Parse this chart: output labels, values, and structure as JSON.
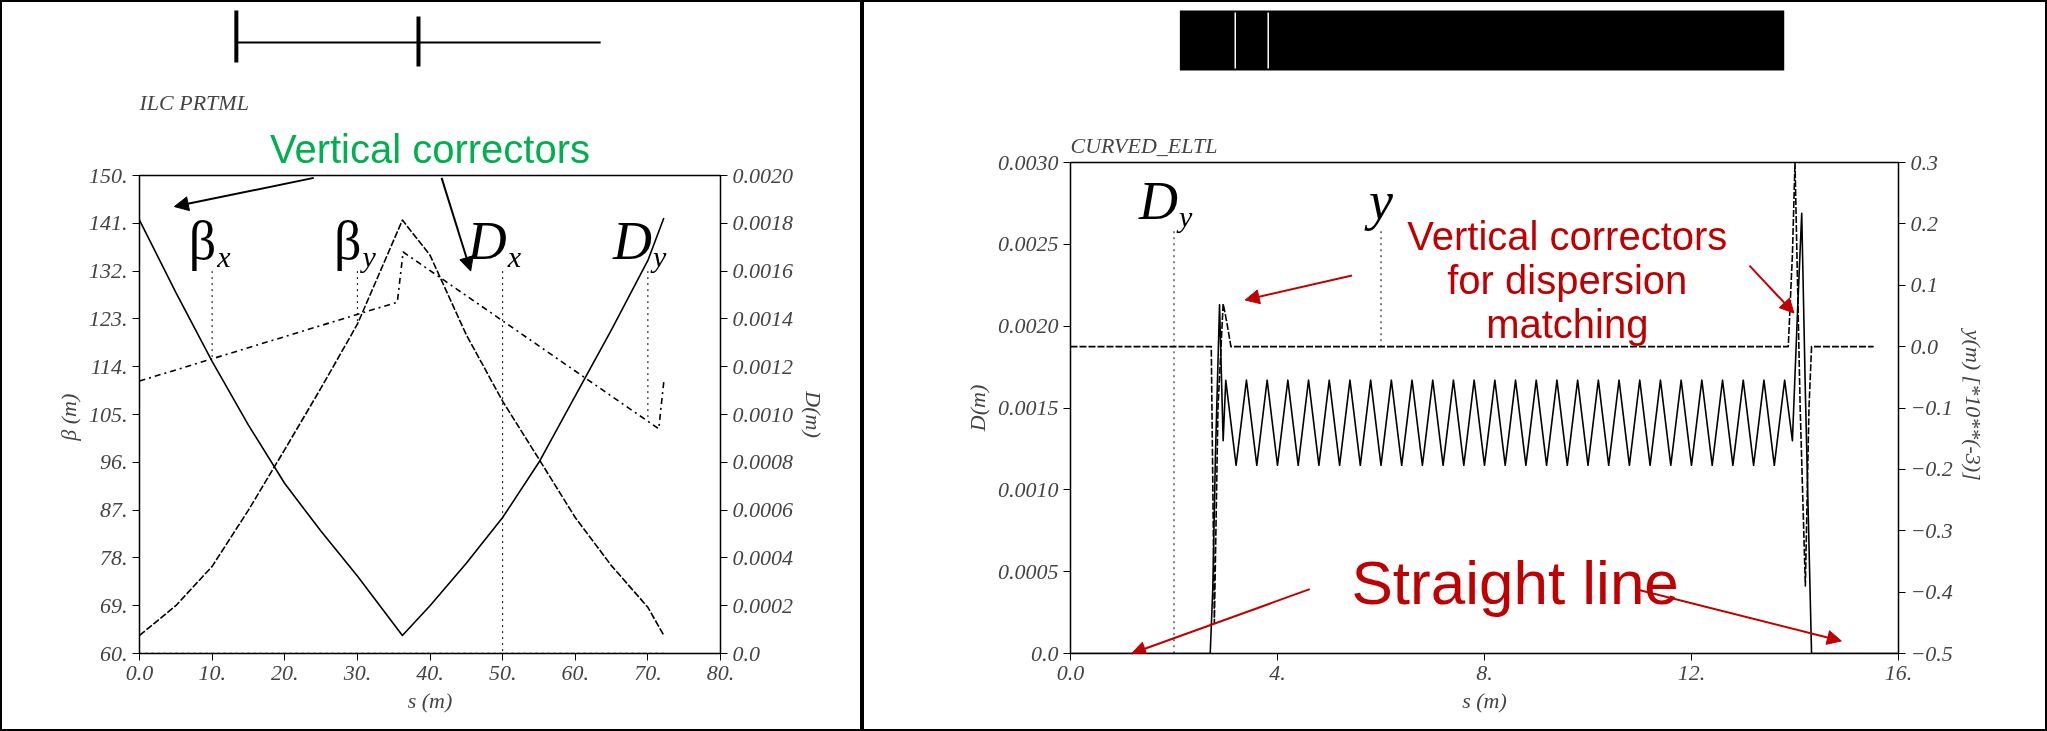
{
  "chart_data": [
    {
      "type": "line",
      "title": "ILC PRTML",
      "xlabel": "s (m)",
      "ylabel": "β  (m)",
      "y2label": "D(m)",
      "xlim": [
        0,
        80
      ],
      "xticks": [
        {
          "value": 0,
          "label": "0.0"
        },
        {
          "value": 10,
          "label": "10."
        },
        {
          "value": 20,
          "label": "20."
        },
        {
          "value": 30,
          "label": "30."
        },
        {
          "value": 40,
          "label": "40."
        },
        {
          "value": 50,
          "label": "50."
        },
        {
          "value": 60,
          "label": "60."
        },
        {
          "value": 70,
          "label": "70."
        },
        {
          "value": 80,
          "label": "80."
        }
      ],
      "ylim": [
        60,
        150
      ],
      "yticks": [
        {
          "value": 60,
          "label": "60."
        },
        {
          "value": 69,
          "label": "69."
        },
        {
          "value": 78,
          "label": "78."
        },
        {
          "value": 87,
          "label": "87."
        },
        {
          "value": 96,
          "label": "96."
        },
        {
          "value": 105,
          "label": "105."
        },
        {
          "value": 114,
          "label": "114."
        },
        {
          "value": 123,
          "label": "123."
        },
        {
          "value": 132,
          "label": "132."
        },
        {
          "value": 141,
          "label": "141."
        },
        {
          "value": 150,
          "label": "150."
        }
      ],
      "y2lim": [
        0,
        0.002
      ],
      "y2ticks": [
        {
          "value": 0,
          "label": "0.0"
        },
        {
          "value": 0.0002,
          "label": "0.0002"
        },
        {
          "value": 0.0004,
          "label": "0.0004"
        },
        {
          "value": 0.0006,
          "label": "0.0006"
        },
        {
          "value": 0.0008,
          "label": "0.0008"
        },
        {
          "value": 0.001,
          "label": "0.0010"
        },
        {
          "value": 0.0012,
          "label": "0.0012"
        },
        {
          "value": 0.0014,
          "label": "0.0014"
        },
        {
          "value": 0.0016,
          "label": "0.0016"
        },
        {
          "value": 0.0018,
          "label": "0.0018"
        },
        {
          "value": 0.002,
          "label": "0.0020"
        }
      ],
      "grid": false,
      "series": [
        {
          "color": "#000000",
          "line_style": "solid",
          "x": [
            0,
            5,
            10,
            15,
            20,
            25,
            30,
            36.2,
            40,
            45,
            50,
            55,
            60,
            65,
            70,
            72.2
          ],
          "values": [
            141.6,
            128,
            115,
            103,
            92,
            83,
            74.6,
            63.4,
            69,
            77,
            85.6,
            96,
            108.5,
            121,
            134,
            142
          ]
        },
        {
          "color": "#000000",
          "line_style": "dashed",
          "x": [
            0,
            5,
            10,
            15,
            20,
            25,
            30,
            36.2,
            40,
            45,
            50,
            55,
            60,
            65,
            70,
            72.2
          ],
          "values": [
            63.4,
            69,
            76.4,
            87,
            98.4,
            110,
            122,
            141.6,
            135,
            120,
            107.5,
            96.6,
            85.6,
            76.5,
            68.7,
            63.4
          ]
        },
        {
          "color": "#000000",
          "line_style": "dotted",
          "axis": "y2",
          "x": [
            0,
            72.2
          ],
          "values": [
            0,
            0
          ]
        },
        {
          "color": "#000000",
          "line_style": "dashdot",
          "axis": "y2",
          "x": [
            0,
            35.5,
            36.3,
            71.5,
            72.2
          ],
          "values": [
            0.00114,
            0.00147,
            0.00168,
            0.00094,
            0.00114
          ]
        }
      ],
      "annotations": [
        {
          "text": "β$_{x}$",
          "x": 10,
          "y": 115
        },
        {
          "text": "β$_{y}$",
          "x": 30,
          "y": 122
        },
        {
          "text": "D$_{x}$",
          "x": 50,
          "y": 60
        },
        {
          "text": "D$_{y}$",
          "x": 70,
          "y": 104.3
        },
        "Vertical correctors"
      ]
    },
    {
      "type": "line",
      "title": "CURVED_ELTL",
      "xlabel": "s (m)",
      "ylabel": "D(m)",
      "y2label": "y(m)  [*10**(-3)]",
      "xlim": [
        0,
        16
      ],
      "xticks": [
        {
          "value": 0,
          "label": "0.0"
        },
        {
          "value": 4,
          "label": "4."
        },
        {
          "value": 8,
          "label": "8."
        },
        {
          "value": 12,
          "label": "12."
        },
        {
          "value": 16,
          "label": "16."
        }
      ],
      "ylim": [
        0,
        0.003
      ],
      "yticks": [
        {
          "value": 0,
          "label": "0.0"
        },
        {
          "value": 0.0005,
          "label": "0.0005"
        },
        {
          "value": 0.001,
          "label": "0.0010"
        },
        {
          "value": 0.0015,
          "label": "0.0015"
        },
        {
          "value": 0.002,
          "label": "0.0020"
        },
        {
          "value": 0.0025,
          "label": "0.0025"
        },
        {
          "value": 0.003,
          "label": "0.0030"
        }
      ],
      "y2lim": [
        -0.5,
        0.3
      ],
      "y2ticks": [
        -0.5,
        -0.4,
        -0.3,
        -0.2,
        -0.1,
        {
          "value": 0,
          "label": "0.0"
        },
        0.1,
        0.2,
        0.3
      ],
      "grid": false,
      "series": [
        {
          "color": "#000000",
          "line_style": "solid",
          "x": [
            0,
            2.7,
            2.75,
            2.8,
            2.88,
            2.95,
            3.0,
            3.2,
            3.4,
            3.6,
            3.8,
            4.0,
            4.2,
            4.4,
            4.6,
            4.8,
            5.0,
            5.2,
            5.4,
            5.6,
            5.8,
            6.0,
            6.2,
            6.4,
            6.6,
            6.8,
            7.0,
            7.2,
            7.4,
            7.6,
            7.8,
            8.0,
            8.2,
            8.4,
            8.6,
            8.8,
            9.0,
            9.2,
            9.4,
            9.6,
            9.8,
            10.0,
            10.2,
            10.4,
            10.6,
            10.8,
            11.0,
            11.2,
            11.4,
            11.6,
            11.8,
            12.0,
            12.2,
            12.4,
            12.6,
            12.8,
            13.0,
            13.2,
            13.4,
            13.6,
            13.8,
            13.95,
            14.05,
            14.13,
            14.2,
            14.32,
            16
          ],
          "values": [
            0,
            0,
            0.0004,
            0.0012,
            0.00213,
            0.0013,
            0.00167,
            0.00115,
            0.00167,
            0.00115,
            0.00167,
            0.00115,
            0.00167,
            0.00115,
            0.00167,
            0.00115,
            0.00167,
            0.00115,
            0.00167,
            0.00115,
            0.00167,
            0.00115,
            0.00167,
            0.00115,
            0.00167,
            0.00115,
            0.00167,
            0.00115,
            0.00167,
            0.00115,
            0.00167,
            0.00115,
            0.00167,
            0.00115,
            0.00167,
            0.00115,
            0.00167,
            0.00115,
            0.00167,
            0.00115,
            0.00167,
            0.00115,
            0.00167,
            0.00115,
            0.00167,
            0.00115,
            0.00167,
            0.00115,
            0.00167,
            0.00115,
            0.00167,
            0.00115,
            0.00167,
            0.00115,
            0.00167,
            0.00115,
            0.00167,
            0.00115,
            0.00167,
            0.00115,
            0.00167,
            0.0013,
            0.0021,
            0.00269,
            0.0016,
            0,
            0
          ]
        },
        {
          "color": "#000000",
          "line_style": "dashed",
          "axis": "y2",
          "x": [
            0,
            2.72,
            2.78,
            2.85,
            2.95,
            3.02,
            3.1,
            13.87,
            13.95,
            14.0,
            14.1,
            14.2,
            14.27,
            14.32,
            15.52
          ],
          "values": [
            0,
            0,
            -0.45,
            -0.1,
            0.07,
            0.04,
            0,
            0,
            0.15,
            0.3,
            -0.1,
            -0.39,
            -0.1,
            0,
            0
          ]
        }
      ],
      "annotations": [
        {
          "text": "D$_{y}$",
          "x": 2,
          "y": 0
        },
        {
          "text": "y",
          "x": 6,
          "y": 0.001875
        },
        {
          "text": "Vertical correctors\nfor dispersion\nmatching",
          "x": 13.98,
          "y": 0.00208
        },
        {
          "text": "Straight line",
          "x": 1.18,
          "y": 0
        }
      ]
    }
  ]
}
